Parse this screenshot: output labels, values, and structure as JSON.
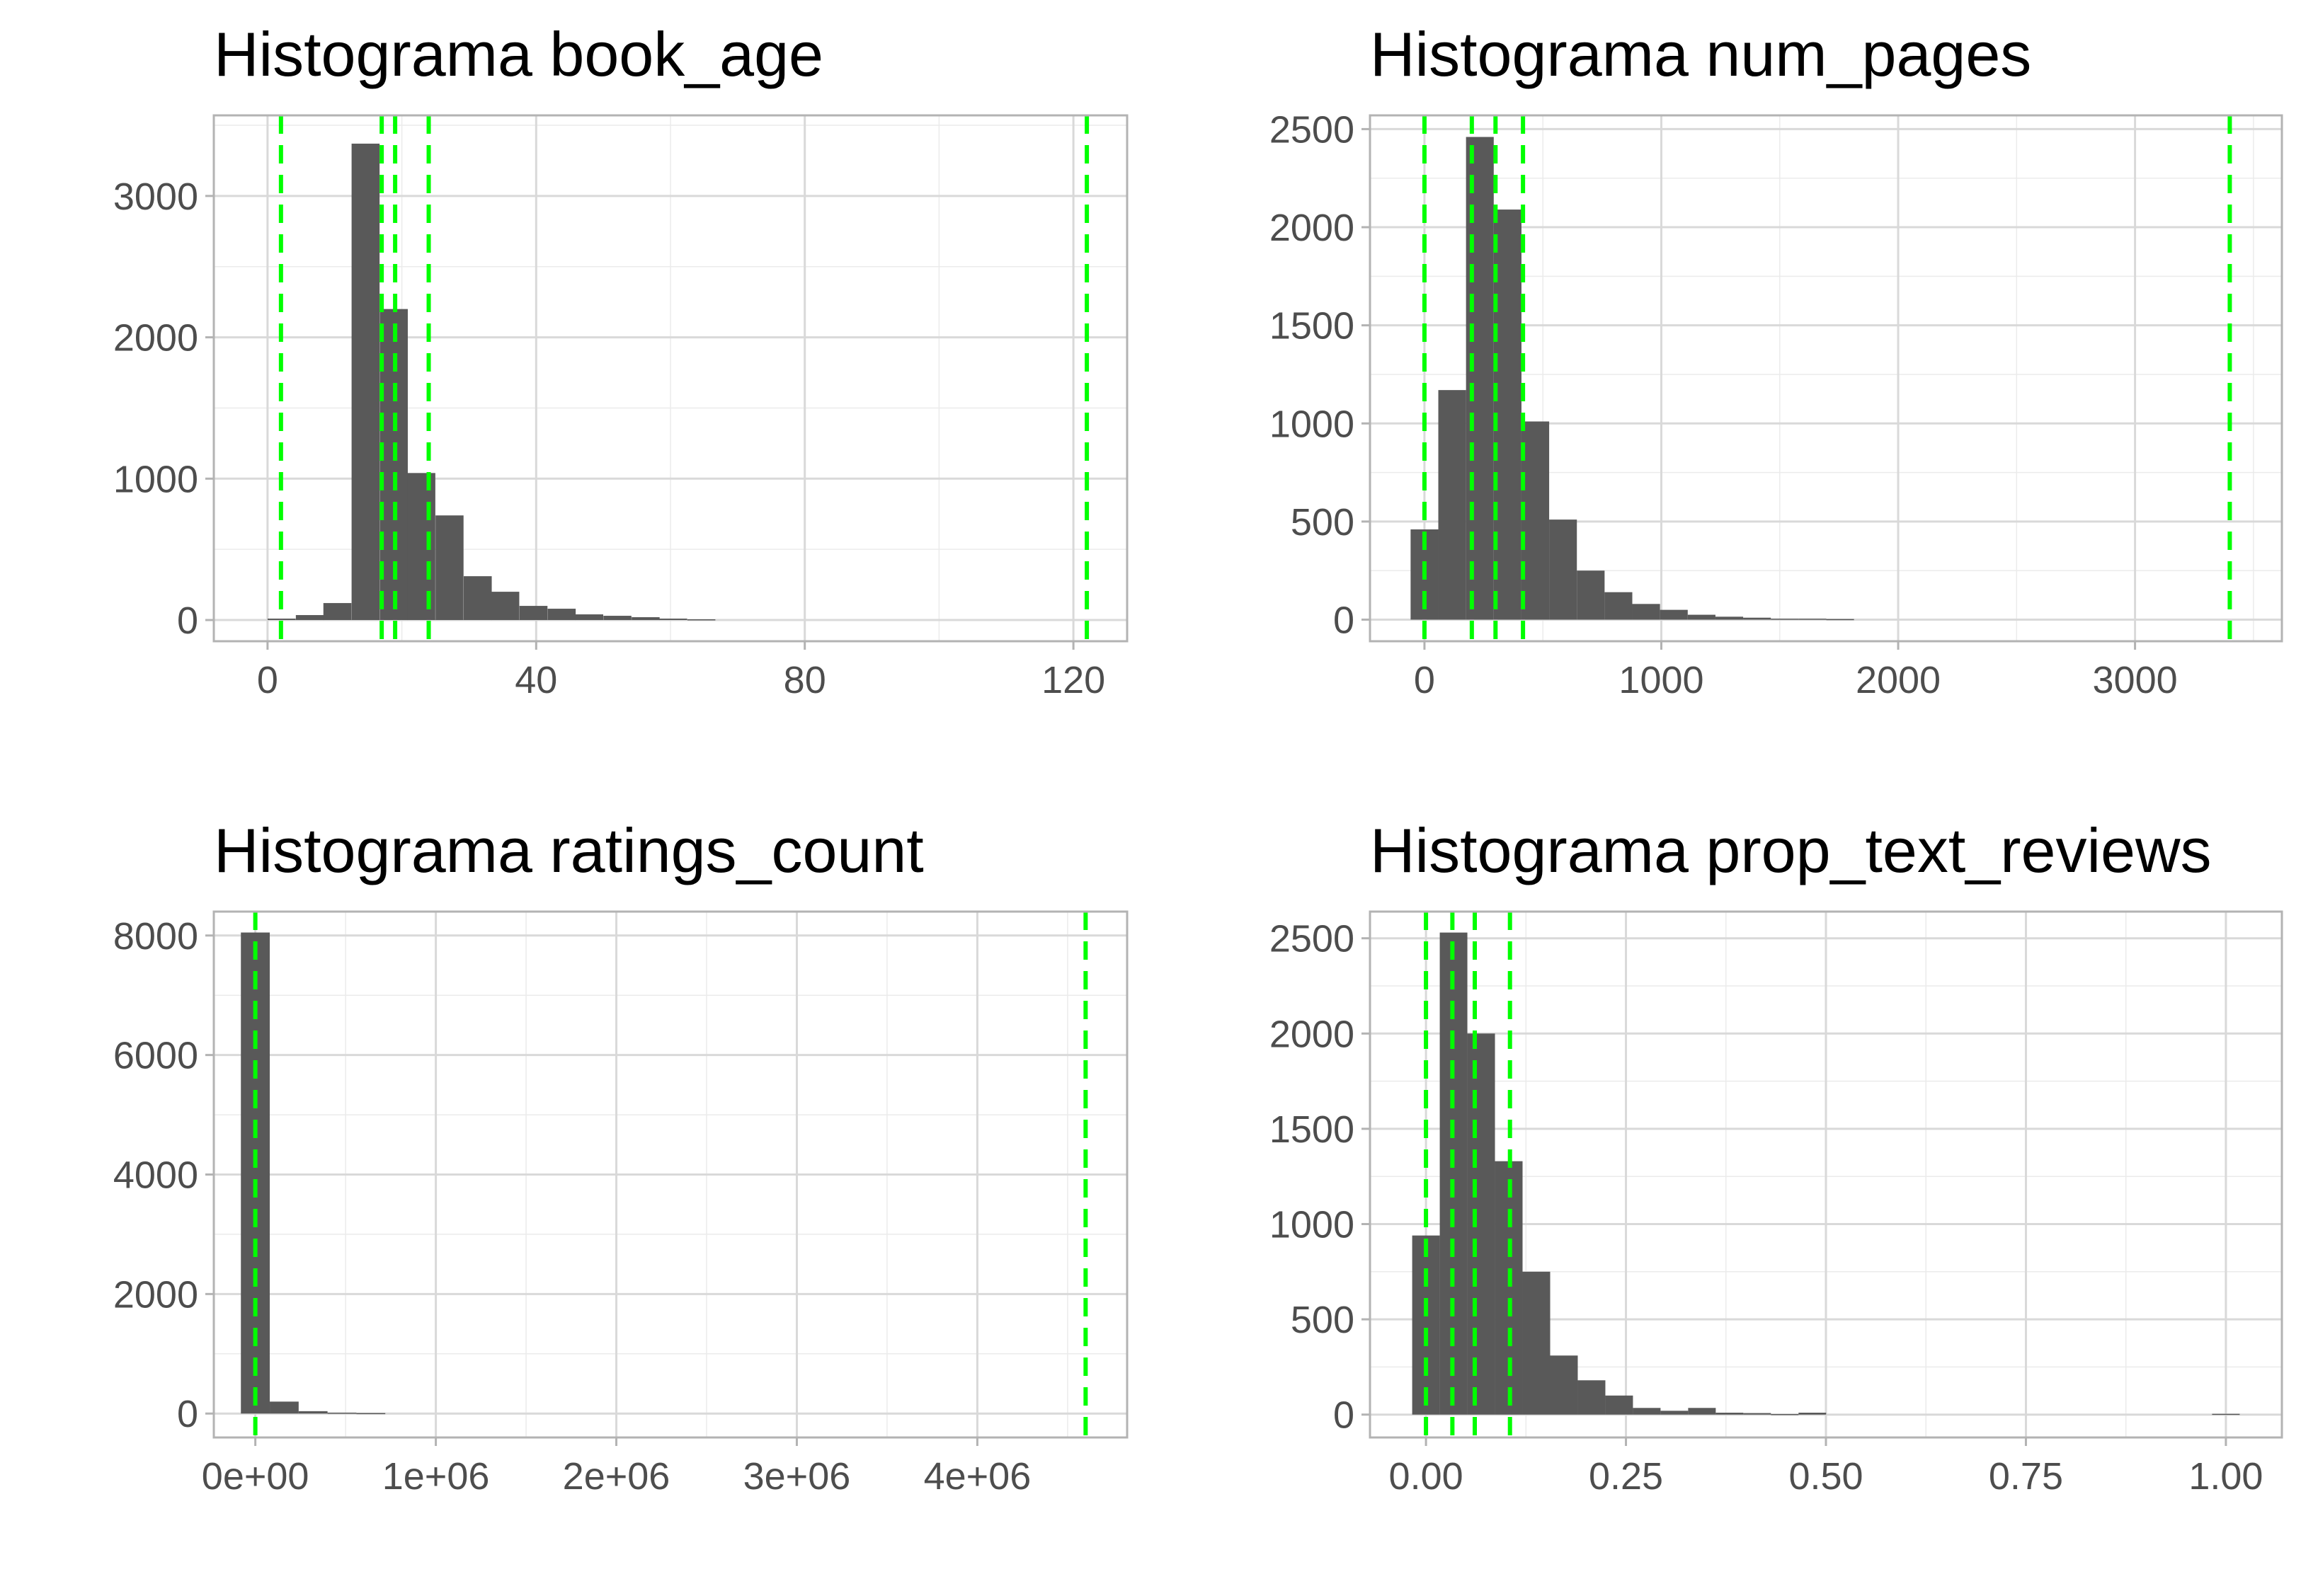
{
  "chart_data": [
    {
      "type": "bar",
      "title": "Histograma book_age",
      "xlabel": "",
      "ylabel": "",
      "xlim": [
        -8,
        128
      ],
      "ylim": [
        -150,
        3570
      ],
      "x_ticks": [
        {
          "value": 0,
          "label": "0"
        },
        {
          "value": 40,
          "label": "40"
        },
        {
          "value": 80,
          "label": "80"
        },
        {
          "value": 120,
          "label": "120"
        }
      ],
      "y_ticks": [
        {
          "value": 0,
          "label": "0"
        },
        {
          "value": 1000,
          "label": "1000"
        },
        {
          "value": 2000,
          "label": "2000"
        },
        {
          "value": 3000,
          "label": "3000"
        }
      ],
      "bin_width": 4.17,
      "bin_centers": [
        2.1,
        6.3,
        10.4,
        14.6,
        18.8,
        22.9,
        27.1,
        31.3,
        35.4,
        39.6,
        43.8,
        47.9,
        52.1,
        56.3,
        60.4,
        64.6
      ],
      "values": [
        10,
        35,
        120,
        3370,
        2200,
        1040,
        740,
        310,
        200,
        100,
        80,
        40,
        30,
        20,
        10,
        5
      ],
      "reference_lines": [
        2,
        17,
        19,
        24,
        122
      ]
    },
    {
      "type": "bar",
      "title": "Histograma num_pages",
      "xlabel": "",
      "ylabel": "",
      "xlim": [
        -230,
        3620
      ],
      "ylim": [
        -110,
        2570
      ],
      "x_ticks": [
        {
          "value": 0,
          "label": "0"
        },
        {
          "value": 1000,
          "label": "1000"
        },
        {
          "value": 2000,
          "label": "2000"
        },
        {
          "value": 3000,
          "label": "3000"
        }
      ],
      "y_ticks": [
        {
          "value": 0,
          "label": "0"
        },
        {
          "value": 500,
          "label": "500"
        },
        {
          "value": 1000,
          "label": "1000"
        },
        {
          "value": 1500,
          "label": "1500"
        },
        {
          "value": 2000,
          "label": "2000"
        },
        {
          "value": 2500,
          "label": "2500"
        }
      ],
      "bin_width": 117,
      "bin_centers": [
        0,
        117,
        234,
        351,
        468,
        585,
        702,
        819,
        936,
        1053,
        1170,
        1287,
        1404,
        1521,
        1638,
        1755
      ],
      "values": [
        460,
        1170,
        2460,
        2090,
        1010,
        510,
        250,
        140,
        80,
        50,
        25,
        15,
        10,
        5,
        5,
        3
      ],
      "reference_lines": [
        0,
        200,
        300,
        416,
        3400
      ]
    },
    {
      "type": "bar",
      "title": "Histograma ratings_count",
      "xlabel": "",
      "ylabel": "",
      "xlim": [
        -230000,
        4830000
      ],
      "ylim": [
        -400,
        8400
      ],
      "x_ticks": [
        {
          "value": 0,
          "label": "0e+00"
        },
        {
          "value": 1000000,
          "label": "1e+06"
        },
        {
          "value": 2000000,
          "label": "2e+06"
        },
        {
          "value": 3000000,
          "label": "3e+06"
        },
        {
          "value": 4000000,
          "label": "4e+06"
        }
      ],
      "y_ticks": [
        {
          "value": 0,
          "label": "0"
        },
        {
          "value": 2000,
          "label": "2000"
        },
        {
          "value": 4000,
          "label": "4000"
        },
        {
          "value": 6000,
          "label": "6000"
        },
        {
          "value": 8000,
          "label": "8000"
        }
      ],
      "bin_width": 160000,
      "bin_centers": [
        0,
        160000,
        320000,
        480000,
        640000
      ],
      "values": [
        8050,
        200,
        40,
        15,
        8
      ],
      "reference_lines": [
        0,
        4600000
      ]
    },
    {
      "type": "bar",
      "title": "Histograma prop_text_reviews",
      "xlabel": "",
      "ylabel": "",
      "xlim": [
        -0.07,
        1.07
      ],
      "ylim": [
        -120,
        2640
      ],
      "x_ticks": [
        {
          "value": 0,
          "label": "0.00"
        },
        {
          "value": 0.25,
          "label": "0.25"
        },
        {
          "value": 0.5,
          "label": "0.50"
        },
        {
          "value": 0.75,
          "label": "0.75"
        },
        {
          "value": 1,
          "label": "1.00"
        }
      ],
      "y_ticks": [
        {
          "value": 0,
          "label": "0"
        },
        {
          "value": 500,
          "label": "500"
        },
        {
          "value": 1000,
          "label": "1000"
        },
        {
          "value": 1500,
          "label": "1500"
        },
        {
          "value": 2000,
          "label": "2000"
        },
        {
          "value": 2500,
          "label": "2500"
        }
      ],
      "bin_width": 0.0345,
      "bin_centers": [
        0,
        0.0345,
        0.069,
        0.1035,
        0.138,
        0.1725,
        0.207,
        0.2415,
        0.276,
        0.3105,
        0.345,
        0.3795,
        0.414,
        0.4485,
        0.483,
        1.0
      ],
      "values": [
        940,
        2530,
        2000,
        1330,
        750,
        310,
        180,
        100,
        35,
        20,
        35,
        10,
        8,
        3,
        10,
        4
      ],
      "reference_lines": [
        0,
        0.033,
        0.061,
        0.105
      ]
    }
  ]
}
